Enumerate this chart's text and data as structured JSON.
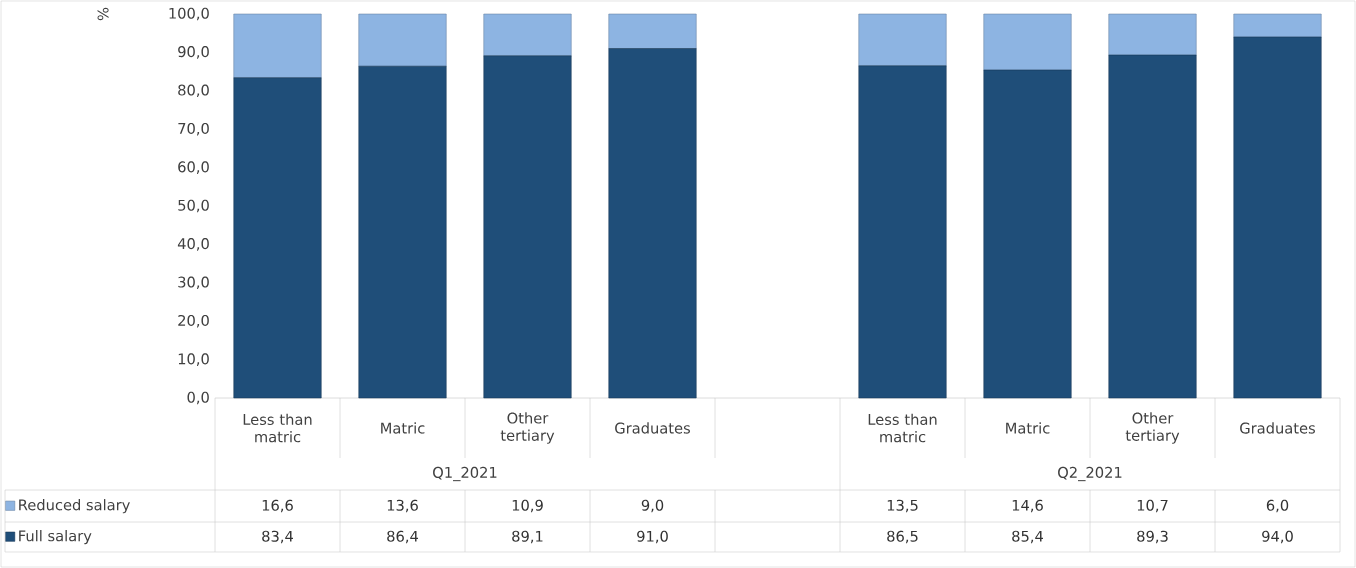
{
  "chart_data": {
    "type": "bar",
    "stacked": true,
    "ylabel": "%",
    "categories": [
      "Less than matric",
      "Matric",
      "Other tertiary",
      "Graduates",
      null,
      "Less than matric",
      "Matric",
      "Other tertiary",
      "Graduates"
    ],
    "series": [
      {
        "name": "Full salary",
        "color": "#1f4e79",
        "values": [
          83.4,
          86.4,
          89.1,
          91.0,
          null,
          86.5,
          85.4,
          89.3,
          94.0
        ],
        "value_labels": [
          "83,4",
          "86,4",
          "89,1",
          "91,0",
          null,
          "86,5",
          "85,4",
          "89,3",
          "94,0"
        ]
      },
      {
        "name": "Reduced salary",
        "color": "#8db4e2",
        "values": [
          16.6,
          13.6,
          10.9,
          9.0,
          null,
          13.5,
          14.6,
          10.7,
          6.0
        ],
        "value_labels": [
          "16,6",
          "13,6",
          "10,9",
          "9,0",
          null,
          "13,5",
          "14,6",
          "10,7",
          "6,0"
        ]
      }
    ],
    "annotations": [
      "Q1_2021",
      "Q2_2021"
    ],
    "ylim": [
      0,
      100
    ],
    "yticks": [
      {
        "value": 0,
        "label": "0,0"
      },
      {
        "value": 10,
        "label": "10,0"
      },
      {
        "value": 20,
        "label": "20,0"
      },
      {
        "value": 30,
        "label": "30,0"
      },
      {
        "value": 40,
        "label": "40,0"
      },
      {
        "value": 50,
        "label": "50,0"
      },
      {
        "value": 60,
        "label": "60,0"
      },
      {
        "value": 70,
        "label": "70,0"
      },
      {
        "value": 80,
        "label": "80,0"
      },
      {
        "value": 90,
        "label": "90,0"
      },
      {
        "value": 100,
        "label": "100,0"
      }
    ],
    "legend": "bottom"
  }
}
